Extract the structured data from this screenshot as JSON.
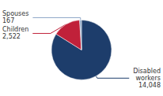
{
  "chart_data": {
    "type": "pie",
    "categories": [
      "Disabled\nworkers",
      "Children",
      "Spouses"
    ],
    "values": [
      14048,
      2522,
      167
    ],
    "value_labels": [
      "14,048",
      "2,522",
      "167"
    ],
    "colors": [
      "#1d3d6b",
      "#c0213a",
      "#8fa8c8"
    ],
    "data_labels": true,
    "legend": false
  }
}
